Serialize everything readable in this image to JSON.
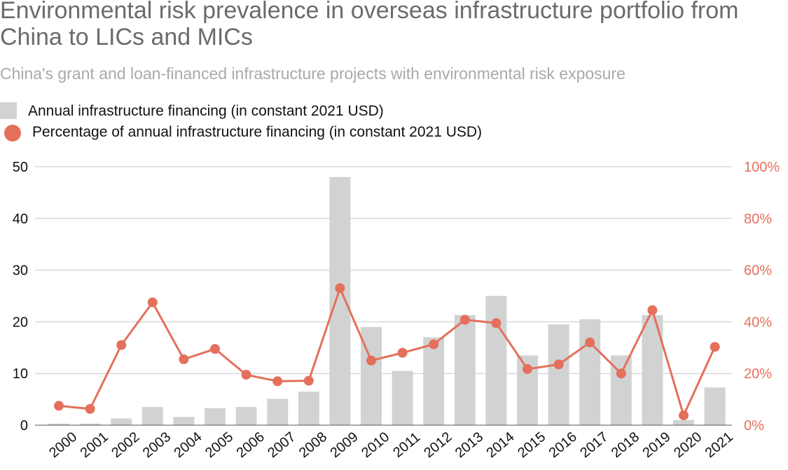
{
  "chart_data": {
    "type": "bar",
    "title": "Environmental risk prevalence in overseas infrastructure portfolio from China to LICs and MICs",
    "subtitle": "China's grant and loan-financed infrastructure projects with environmental risk exposure",
    "categories": [
      "2000",
      "2001",
      "2002",
      "2003",
      "2004",
      "2005",
      "2006",
      "2007",
      "2008",
      "2009",
      "2010",
      "2011",
      "2012",
      "2013",
      "2014",
      "2015",
      "2016",
      "2017",
      "2018",
      "2019",
      "2020",
      "2021"
    ],
    "series": [
      {
        "name": "Annual infrastructure financing (in constant 2021 USD)",
        "type": "bar",
        "axis": "left",
        "color": "#d1d3d3",
        "values": [
          0.3,
          0.3,
          1.3,
          3.5,
          1.6,
          3.3,
          3.5,
          5.1,
          6.5,
          48,
          19,
          10.5,
          17,
          21.3,
          25,
          13.5,
          19.5,
          20.5,
          13.5,
          21.3,
          1.0,
          7.3
        ]
      },
      {
        "name": "Percentage of annual infrastructure financing (in constant 2021 USD)",
        "type": "line",
        "axis": "right",
        "color": "#e4705c",
        "values": [
          7.5,
          6.3,
          31,
          47.5,
          25.5,
          29.5,
          19.5,
          17,
          17.2,
          53,
          25,
          28,
          31.3,
          40.8,
          39.5,
          21.7,
          23.5,
          32,
          20,
          44.5,
          3.8,
          30.3
        ]
      }
    ],
    "y_left": {
      "ylim": [
        0,
        50
      ],
      "ticks": [
        "0",
        "10",
        "20",
        "30",
        "40",
        "50"
      ]
    },
    "y_right": {
      "ylim": [
        0,
        100
      ],
      "ticks": [
        "0%",
        "20%",
        "40%",
        "60%",
        "80%",
        "100%"
      ]
    },
    "grid": true,
    "legend_position": "top-left"
  }
}
